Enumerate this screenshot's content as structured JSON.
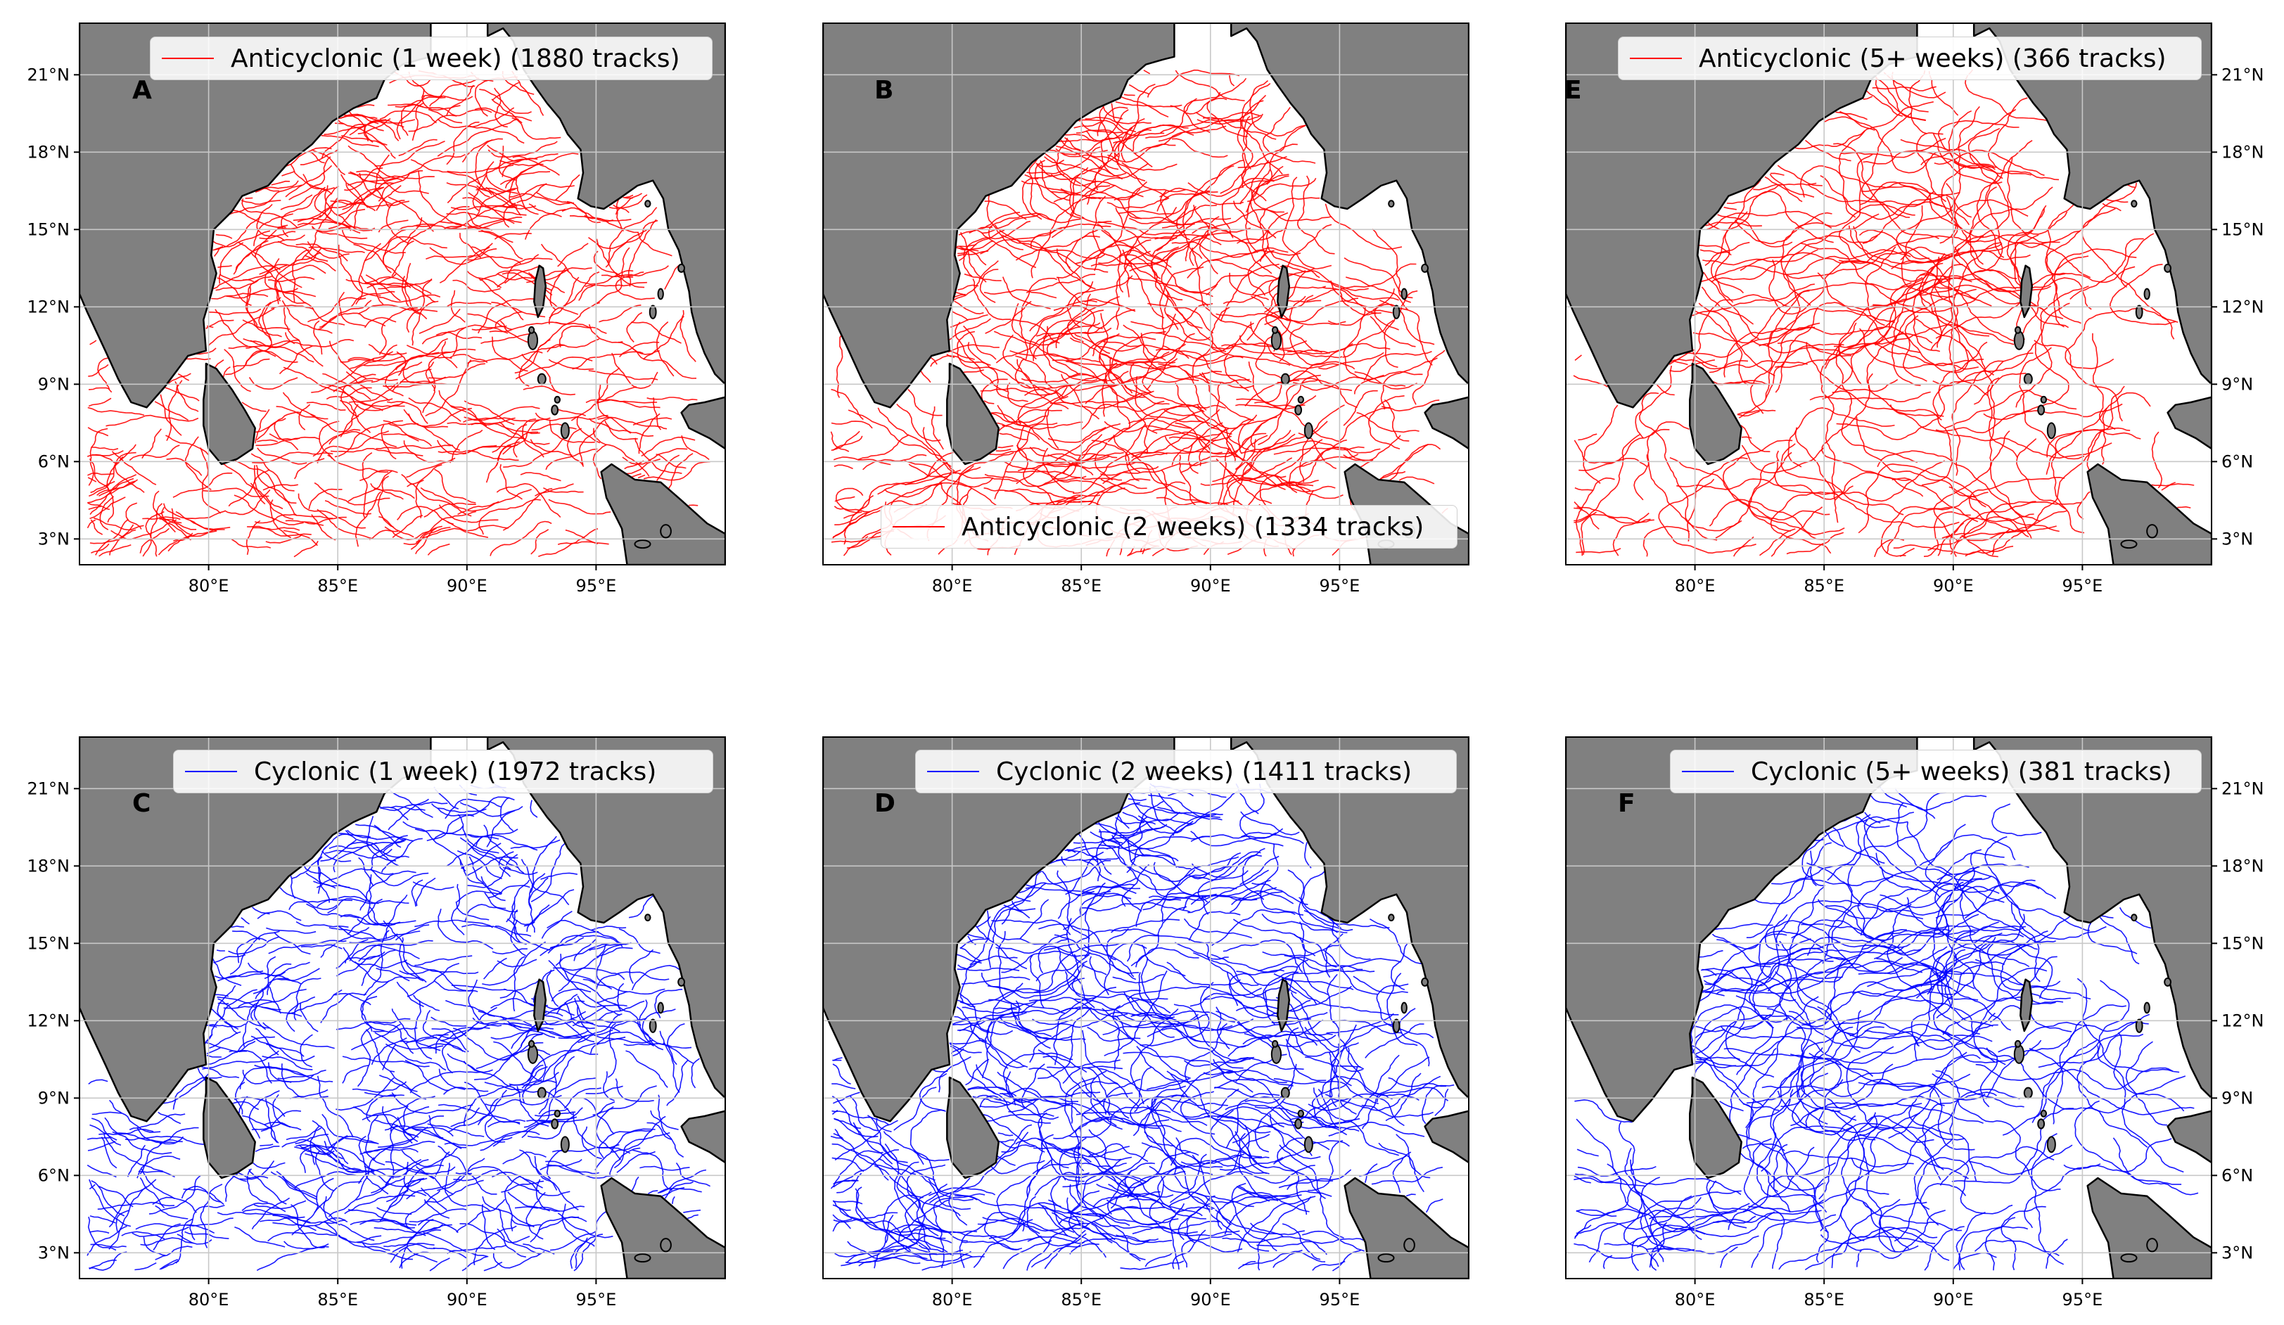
{
  "axis": {
    "lon_range": [
      75,
      100
    ],
    "lat_range": [
      2,
      23
    ],
    "lon_ticks": [
      "80°E",
      "85°E",
      "90°E",
      "95°E"
    ],
    "lat_ticks": [
      "3°N",
      "6°N",
      "9°N",
      "12°N",
      "15°N",
      "18°N",
      "21°N"
    ]
  },
  "colors": {
    "anticyclonic": "#ff0000",
    "cyclonic": "#0000ff",
    "land": "#808080",
    "gridline": "#c8c8c8"
  },
  "panels": [
    {
      "label": "A",
      "legend": "Anticyclonic (1 week) (1880 tracks)",
      "type": "anticyclonic",
      "min_weeks": 1,
      "track_count": 1880,
      "y_labels_side": "left",
      "legend_position": "upper right"
    },
    {
      "label": "B",
      "legend": "Anticyclonic (2 weeks) (1334 tracks)",
      "type": "anticyclonic",
      "min_weeks": 2,
      "track_count": 1334,
      "y_labels_side": "none",
      "legend_position": "lower right"
    },
    {
      "label": "E",
      "legend": "Anticyclonic (5+ weeks) (366 tracks)",
      "type": "anticyclonic",
      "min_weeks": 5,
      "track_count": 366,
      "y_labels_side": "right",
      "legend_position": "upper right"
    },
    {
      "label": "C",
      "legend": "Cyclonic (1 week) (1972 tracks)",
      "type": "cyclonic",
      "min_weeks": 1,
      "track_count": 1972,
      "y_labels_side": "left",
      "legend_position": "upper right"
    },
    {
      "label": "D",
      "legend": "Cyclonic (2 weeks) (1411 tracks)",
      "type": "cyclonic",
      "min_weeks": 2,
      "track_count": 1411,
      "y_labels_side": "none",
      "legend_position": "upper right"
    },
    {
      "label": "F",
      "legend": "Cyclonic (5+ weeks) (381 tracks)",
      "type": "cyclonic",
      "min_weeks": 5,
      "track_count": 381,
      "y_labels_side": "right",
      "legend_position": "upper right"
    }
  ]
}
